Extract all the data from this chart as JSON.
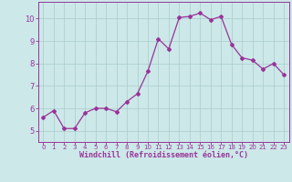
{
  "x": [
    0,
    1,
    2,
    3,
    4,
    5,
    6,
    7,
    8,
    9,
    10,
    11,
    12,
    13,
    14,
    15,
    16,
    17,
    18,
    19,
    20,
    21,
    22,
    23
  ],
  "y": [
    5.6,
    5.9,
    5.1,
    5.1,
    5.8,
    6.0,
    6.0,
    5.85,
    6.3,
    6.65,
    7.65,
    9.1,
    8.65,
    10.05,
    10.1,
    10.25,
    9.95,
    10.1,
    8.85,
    8.25,
    8.15,
    7.75,
    8.0,
    7.5
  ],
  "line_color": "#993399",
  "marker": "D",
  "marker_size": 2,
  "bg_color": "#cce8e8",
  "grid_color": "#aacccc",
  "xlabel": "Windchill (Refroidissement éolien,°C)",
  "xlabel_color": "#993399",
  "tick_color": "#993399",
  "xlim": [
    -0.5,
    23.5
  ],
  "ylim": [
    4.5,
    10.75
  ],
  "yticks": [
    5,
    6,
    7,
    8,
    9,
    10
  ],
  "xticks": [
    0,
    1,
    2,
    3,
    4,
    5,
    6,
    7,
    8,
    9,
    10,
    11,
    12,
    13,
    14,
    15,
    16,
    17,
    18,
    19,
    20,
    21,
    22,
    23
  ],
  "spine_color": "#993399",
  "tick_fontsize_x": 5.0,
  "tick_fontsize_y": 6.0,
  "xlabel_fontsize": 6.0
}
